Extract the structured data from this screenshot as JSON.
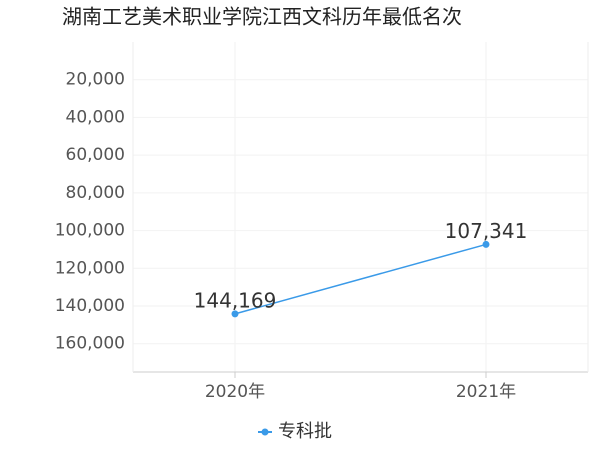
{
  "chart_data": {
    "type": "line",
    "title": "湖南工艺美术职业学院江西文科历年最低名次",
    "categories": [
      "2020年",
      "2021年"
    ],
    "series": [
      {
        "name": "专科批",
        "color": "#3a9ae8",
        "values": [
          144169,
          107341
        ],
        "value_labels": [
          "144,169",
          "107,341"
        ]
      }
    ],
    "ylim": [
      0,
      175000
    ],
    "inverted": true,
    "yticks": [
      {
        "value": 20000,
        "label": "20,000"
      },
      {
        "value": 40000,
        "label": "40,000"
      },
      {
        "value": 60000,
        "label": "60,000"
      },
      {
        "value": 80000,
        "label": "80,000"
      },
      {
        "value": 100000,
        "label": "100,000"
      },
      {
        "value": 120000,
        "label": "120,000"
      },
      {
        "value": 140000,
        "label": "140,000"
      },
      {
        "value": 160000,
        "label": "160,000"
      }
    ],
    "grid": true
  }
}
